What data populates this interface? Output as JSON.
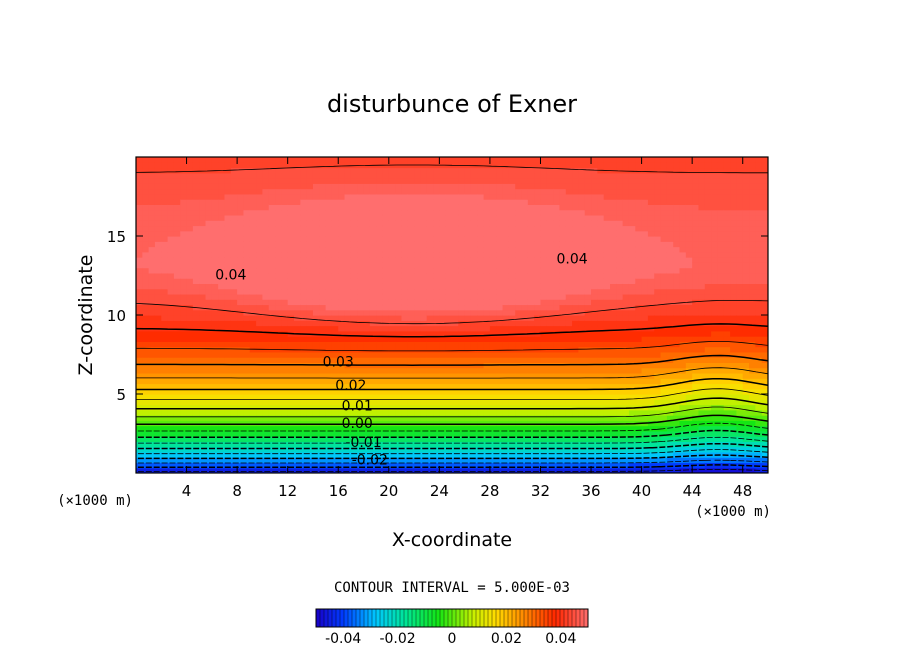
{
  "chart_data": {
    "type": "contour",
    "title": "disturbunce of Exner",
    "xlabel": "X-coordinate",
    "ylabel": "Z-coordinate",
    "x_unit": "(×1000 m)",
    "z_unit": "(×1000 m)",
    "xlim": [
      0,
      50
    ],
    "ylim": [
      0,
      20
    ],
    "x_ticks": [
      4,
      8,
      12,
      16,
      20,
      24,
      28,
      32,
      36,
      40,
      44,
      48
    ],
    "y_ticks": [
      5,
      10,
      15
    ],
    "contour_interval_text": "CONTOUR INTERVAL = 5.000E-03",
    "contour_interval": 0.005,
    "contour_labels": [
      {
        "text": "0.04",
        "x": 7.5,
        "z": 12.5
      },
      {
        "text": "0.04",
        "x": 34.5,
        "z": 13.5
      },
      {
        "text": "0.03",
        "x": 16,
        "z": 7.0
      },
      {
        "text": "0.02",
        "x": 17,
        "z": 5.5
      },
      {
        "text": "0.01",
        "x": 17.5,
        "z": 4.2
      },
      {
        "text": "0.00",
        "x": 17.5,
        "z": 3.1
      },
      {
        "text": "-0.01",
        "x": 18,
        "z": 1.9
      },
      {
        "text": "-0.02",
        "x": 18.5,
        "z": 0.8
      }
    ],
    "value_range": [
      -0.05,
      0.05
    ],
    "colorbar_ticks": [
      "-0.04",
      "-0.02",
      "0",
      "0.02",
      "0.04"
    ],
    "colorbar_tick_values": [
      -0.04,
      -0.02,
      0,
      0.02,
      0.04
    ],
    "negative_contours": "dashed",
    "max_region": {
      "x_center": 22,
      "z_center": 13.5,
      "approx_value": 0.046
    }
  }
}
